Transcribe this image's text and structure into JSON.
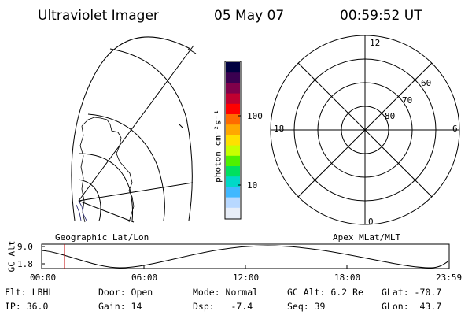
{
  "header": {
    "instrument": "Ultraviolet Imager",
    "date": "05 May 07",
    "time": "00:59:52 UT"
  },
  "colorbar": {
    "unit_label": "photon cm⁻²s⁻¹",
    "ticks": [
      "100",
      "10"
    ],
    "colors": [
      "#000040",
      "#3a0050",
      "#80004a",
      "#c00030",
      "#ff0000",
      "#ff6a00",
      "#ffa800",
      "#ffe000",
      "#c8ff00",
      "#50f000",
      "#00e060",
      "#00d8c8",
      "#40b8ff",
      "#b8d8ff",
      "#e8eef8"
    ]
  },
  "polar_plot": {
    "mlt_labels": {
      "top": "12",
      "left": "18",
      "right": "6",
      "bottom": "0"
    },
    "lat_labels": [
      "60",
      "70",
      "80"
    ]
  },
  "projection_labels": {
    "left": "Geographic Lat/Lon",
    "right": "Apex MLat/MLT"
  },
  "altitude_plot": {
    "ylabel": "GC Alt",
    "yticks": [
      "9.0",
      "1.8"
    ],
    "xticks": [
      "00:00",
      "06:00",
      "12:00",
      "18:00",
      "23:59"
    ],
    "marker_color": "#c00000"
  },
  "info": {
    "filter": "Flt: LBHL",
    "door": "Door: Open",
    "mode": "Mode: Normal",
    "gc_alt": "GC Alt: 6.2 Re",
    "glat": "GLat: -70.7",
    "ip": "IP: 36.0",
    "gain": "Gain: 14",
    "dsp": "Dsp:   -7.4",
    "seq": "Seq: 39",
    "glon": "GLon:  43.7"
  }
}
